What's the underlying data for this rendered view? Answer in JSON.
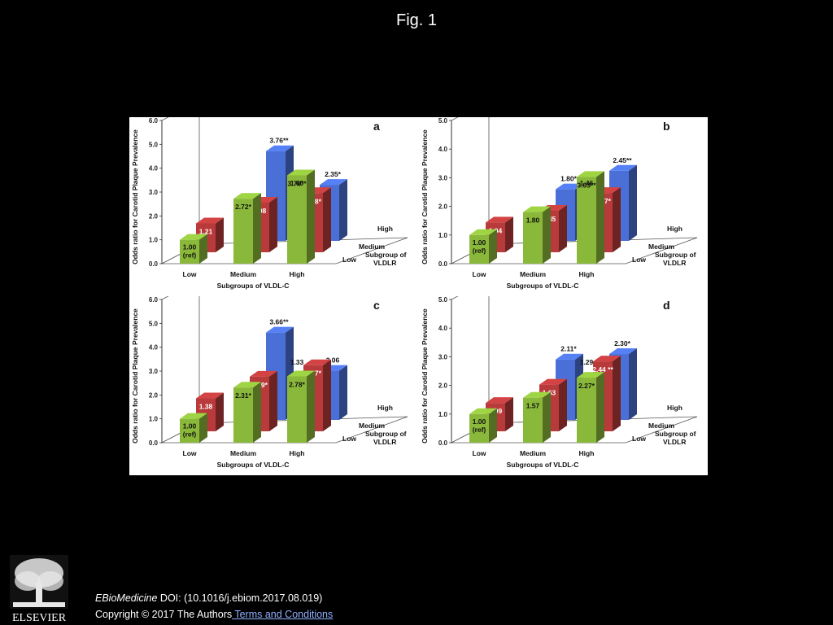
{
  "figure_title": "Fig. 1",
  "footer": {
    "journal": "EBioMedicine",
    "doi": " DOI: (10.1016/j.ebiom.2017.08.019)",
    "copyright": "Copyright © 2017 The Authors",
    "terms_link": " Terms and Conditions",
    "publisher": "ELSEVIER"
  },
  "colors": {
    "blue": "#4a6fd6",
    "red": "#b83a3a",
    "green": "#8ab83a"
  },
  "chart_data": [
    {
      "panel": "a",
      "type": "bar",
      "ylabel": "Odds ratio for Carotid Plaque Prevalence",
      "xlabel": "Subgroups of VLDL-C",
      "zlabel": "Subgroup of VLDLR",
      "categories": [
        "Low",
        "Medium",
        "High"
      ],
      "depth_categories": [
        "Low",
        "Medium",
        "High"
      ],
      "yticks": [
        "0.0",
        "1.0",
        "2.0",
        "3.0",
        "4.0",
        "5.0",
        "6.0"
      ],
      "ylim": [
        0,
        6
      ],
      "series": [
        {
          "name": "High",
          "color": "blue",
          "values": [
            null,
            3.76,
            2.35
          ],
          "labels": [
            "",
            "3.76**",
            "2.35*"
          ]
        },
        {
          "name": "Medium",
          "color": "red",
          "values": [
            1.21,
            2.08,
            2.48
          ],
          "labels": [
            "1.21",
            "2.08",
            "2.48*"
          ]
        },
        {
          "name": "Low",
          "color": "green",
          "values": [
            1.0,
            2.72,
            3.7
          ],
          "labels": [
            "1.00\n(ref)",
            "2.72*",
            "3.70**"
          ]
        }
      ],
      "extra_labels": [
        "1.60"
      ]
    },
    {
      "panel": "b",
      "type": "bar",
      "ylabel": "Odds ratio for Carotid Plaque Prevalence",
      "xlabel": "Subgroups of VLDL-C",
      "zlabel": "Subgroup of VLDLR",
      "categories": [
        "Low",
        "Medium",
        "High"
      ],
      "depth_categories": [
        "Low",
        "Medium",
        "High"
      ],
      "yticks": [
        "0.0",
        "1.0",
        "2.0",
        "3.0",
        "4.0",
        "5.0"
      ],
      "ylim": [
        0,
        5
      ],
      "series": [
        {
          "name": "High",
          "color": "blue",
          "values": [
            null,
            1.8,
            2.45
          ],
          "labels": [
            "",
            "1.80*",
            "2.45**"
          ]
        },
        {
          "name": "Medium",
          "color": "red",
          "values": [
            1.04,
            1.45,
            2.07
          ],
          "labels": [
            "1.04",
            "1.45",
            "2.07*"
          ]
        },
        {
          "name": "Low",
          "color": "green",
          "values": [
            1.0,
            1.8,
            3.03
          ],
          "labels": [
            "1.00\n(ref)",
            "1.80",
            "3.03**"
          ]
        }
      ],
      "extra_labels": [
        "1.46"
      ]
    },
    {
      "panel": "c",
      "type": "bar",
      "ylabel": "Odds ratio for Carotid Plaque Prevalence",
      "xlabel": "Subgroups of VLDL-C",
      "zlabel": "Subgroup of VLDLR",
      "categories": [
        "Low",
        "Medium",
        "High"
      ],
      "depth_categories": [
        "Low",
        "Medium",
        "High"
      ],
      "yticks": [
        "0.0",
        "1.0",
        "2.0",
        "3.0",
        "4.0",
        "5.0",
        "6.0"
      ],
      "ylim": [
        0,
        6
      ],
      "series": [
        {
          "name": "High",
          "color": "blue",
          "values": [
            null,
            3.66,
            2.06
          ],
          "labels": [
            "",
            "3.66**",
            "2.06"
          ]
        },
        {
          "name": "Medium",
          "color": "red",
          "values": [
            1.38,
            2.29,
            2.77
          ],
          "labels": [
            "1.38",
            "2.29*",
            "2.77*"
          ]
        },
        {
          "name": "Low",
          "color": "green",
          "values": [
            1.0,
            2.31,
            2.78
          ],
          "labels": [
            "1.00\n(ref)",
            "2.31*",
            "2.78*"
          ]
        }
      ],
      "extra_labels": [
        "1.33"
      ]
    },
    {
      "panel": "d",
      "type": "bar",
      "ylabel": "Odds ratio for Carotid Plaque Prevalence",
      "xlabel": "Subgroups of VLDL-C",
      "zlabel": "Subgroup of VLDLR",
      "categories": [
        "Low",
        "Medium",
        "High"
      ],
      "depth_categories": [
        "Low",
        "Medium",
        "High"
      ],
      "yticks": [
        "0.0",
        "1.0",
        "2.0",
        "3.0",
        "4.0",
        "5.0"
      ],
      "ylim": [
        0,
        5
      ],
      "series": [
        {
          "name": "High",
          "color": "blue",
          "values": [
            null,
            2.11,
            2.3
          ],
          "labels": [
            "",
            "2.11*",
            "2.30*"
          ]
        },
        {
          "name": "Medium",
          "color": "red",
          "values": [
            0.99,
            1.63,
            2.44
          ],
          "labels": [
            "0.99",
            "1.63",
            "2.44 **"
          ]
        },
        {
          "name": "Low",
          "color": "green",
          "values": [
            1.0,
            1.57,
            2.27
          ],
          "labels": [
            "1.00\n(ref)",
            "1.57",
            "2.27*"
          ]
        }
      ],
      "extra_labels": [
        "1.29"
      ]
    }
  ]
}
